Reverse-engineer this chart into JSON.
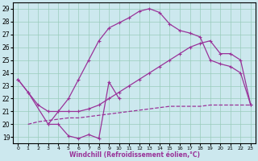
{
  "xlabel": "Windchill (Refroidissement éolien,°C)",
  "background_color": "#cce8ee",
  "grid_color": "#99ccbb",
  "line_color": "#993399",
  "xlim": [
    -0.5,
    23.5
  ],
  "ylim": [
    18.5,
    29.5
  ],
  "xticks": [
    0,
    1,
    2,
    3,
    4,
    5,
    6,
    7,
    8,
    9,
    10,
    11,
    12,
    13,
    14,
    15,
    16,
    17,
    18,
    19,
    20,
    21,
    22,
    23
  ],
  "yticks": [
    19,
    20,
    21,
    22,
    23,
    24,
    25,
    26,
    27,
    28,
    29
  ],
  "curve_upper_x": [
    3,
    4,
    5,
    6,
    7,
    8,
    9,
    10,
    11,
    12,
    13,
    14,
    15,
    16,
    17,
    18,
    19,
    20,
    21,
    22,
    23
  ],
  "curve_upper_y": [
    20.0,
    21.0,
    22.0,
    23.5,
    25.0,
    26.5,
    27.5,
    27.9,
    28.3,
    28.8,
    29.0,
    28.7,
    27.8,
    27.3,
    27.1,
    26.8,
    25.0,
    24.7,
    24.5,
    24.0,
    21.5
  ],
  "line_diag_x": [
    0,
    1,
    2,
    3,
    4,
    5,
    6,
    7,
    8,
    9,
    10,
    11,
    12,
    13,
    14,
    15,
    16,
    17,
    18,
    19,
    20,
    21,
    22,
    23
  ],
  "line_diag_y": [
    23.5,
    22.5,
    21.5,
    21.0,
    21.0,
    21.0,
    21.0,
    21.2,
    21.5,
    22.0,
    22.5,
    23.0,
    23.5,
    24.0,
    24.5,
    25.0,
    25.5,
    26.0,
    26.3,
    26.5,
    25.5,
    25.5,
    25.0,
    21.5
  ],
  "line_flat_x": [
    1,
    2,
    3,
    4,
    5,
    6,
    7,
    8,
    9,
    10,
    11,
    12,
    13,
    14,
    15,
    16,
    17,
    18,
    19,
    20,
    21,
    22,
    23
  ],
  "line_flat_y": [
    20.0,
    20.2,
    20.3,
    20.4,
    20.5,
    20.5,
    20.6,
    20.7,
    20.8,
    20.9,
    21.0,
    21.1,
    21.2,
    21.3,
    21.4,
    21.4,
    21.4,
    21.4,
    21.5,
    21.5,
    21.5,
    21.5,
    21.5
  ],
  "line_jagged_x": [
    0,
    1,
    3,
    4,
    5,
    6,
    7,
    8,
    9,
    10
  ],
  "line_jagged_y": [
    23.5,
    22.5,
    20.0,
    20.0,
    19.1,
    18.9,
    19.2,
    18.9,
    23.3,
    22.0
  ]
}
